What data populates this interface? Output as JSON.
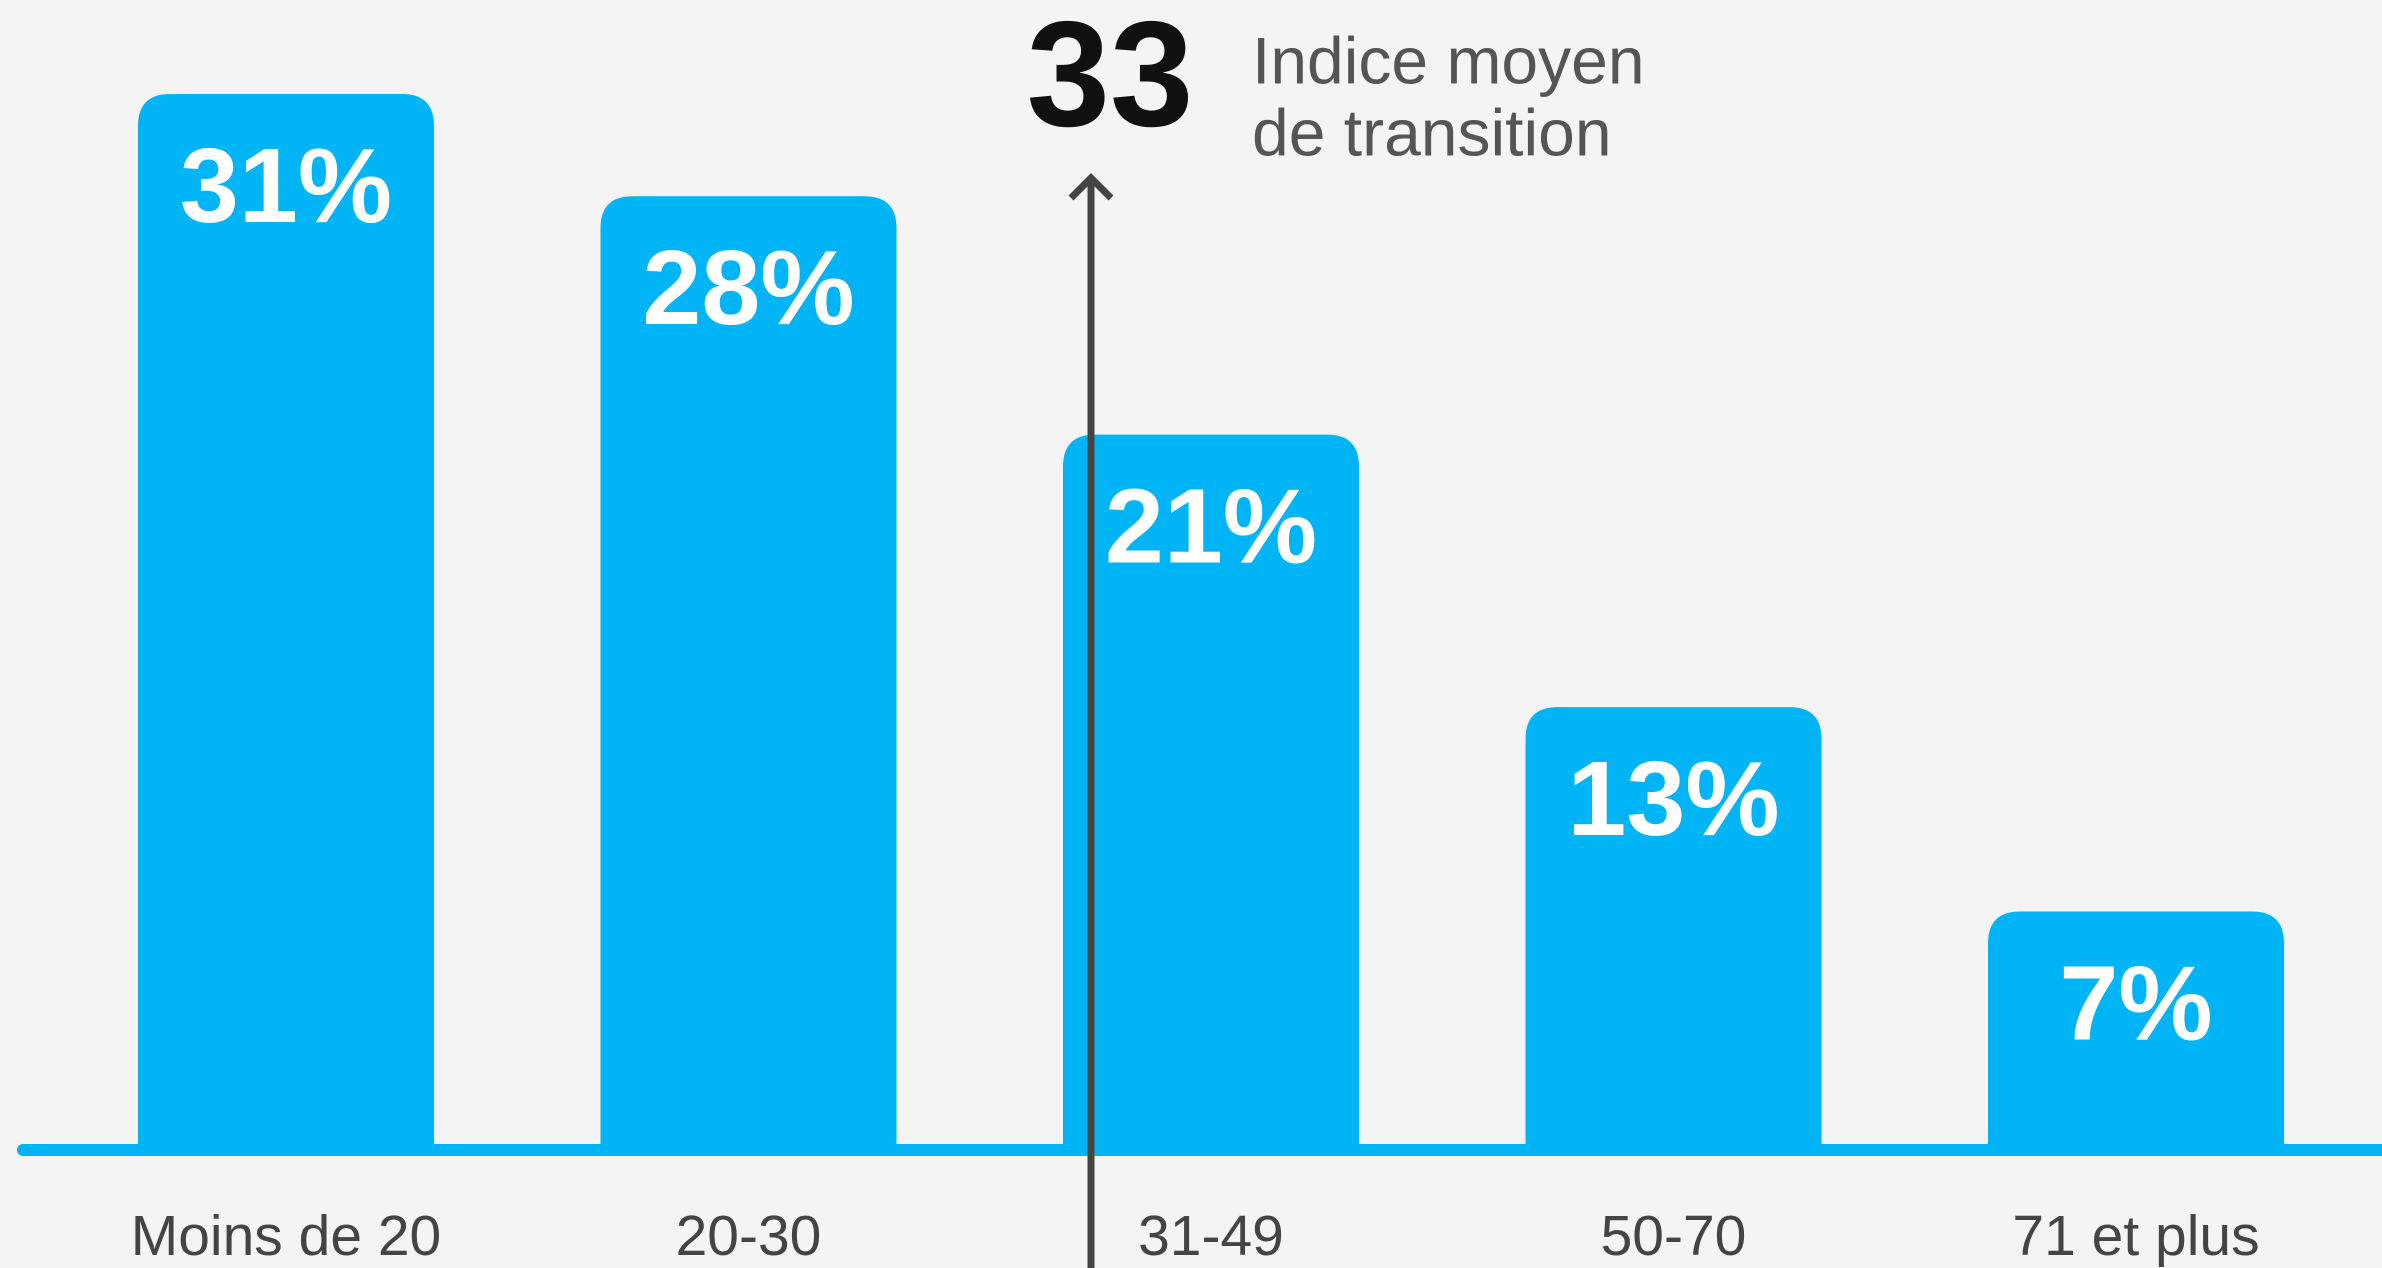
{
  "chart_data": {
    "type": "bar",
    "categories": [
      "Moins de 20",
      "20-30",
      "31-49",
      "50-70",
      "71 et plus"
    ],
    "values": [
      31,
      28,
      21,
      13,
      7
    ],
    "value_labels": [
      "31%",
      "28%",
      "21%",
      "13%",
      "7%"
    ],
    "color": "#00b4f5",
    "annotation": {
      "value": 33,
      "label": [
        "Indice moyen",
        "de transition"
      ]
    }
  }
}
